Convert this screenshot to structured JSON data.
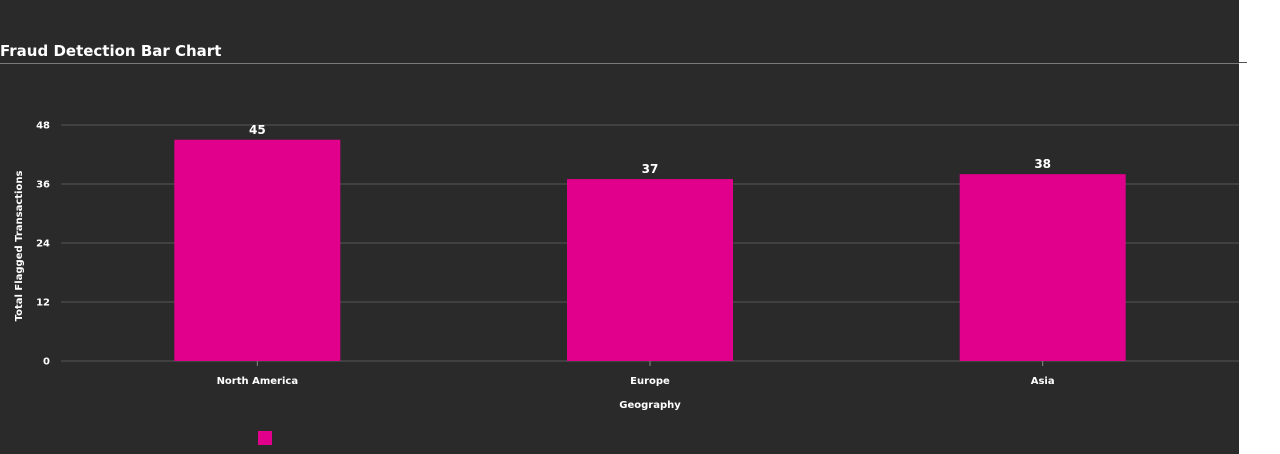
{
  "chart_data": {
    "type": "bar",
    "title": "Fraud Detection Bar Chart",
    "categories": [
      "North America",
      "Europe",
      "Asia"
    ],
    "series": [
      {
        "values": [
          45,
          37,
          38
        ],
        "color": "#e0008c"
      }
    ],
    "xlabel": "Geography",
    "ylabel": "Total Flagged Transactions",
    "ylim": [
      0,
      48
    ],
    "yticks": [
      0,
      12,
      24,
      36,
      48
    ],
    "grid": true,
    "data_labels": true,
    "legend": {
      "placement": "bottom-left",
      "swatch_color": "#e0008c"
    },
    "background_color": "#2a2a2a",
    "gridline_color": "#555555",
    "text_color": "#ffffff"
  }
}
